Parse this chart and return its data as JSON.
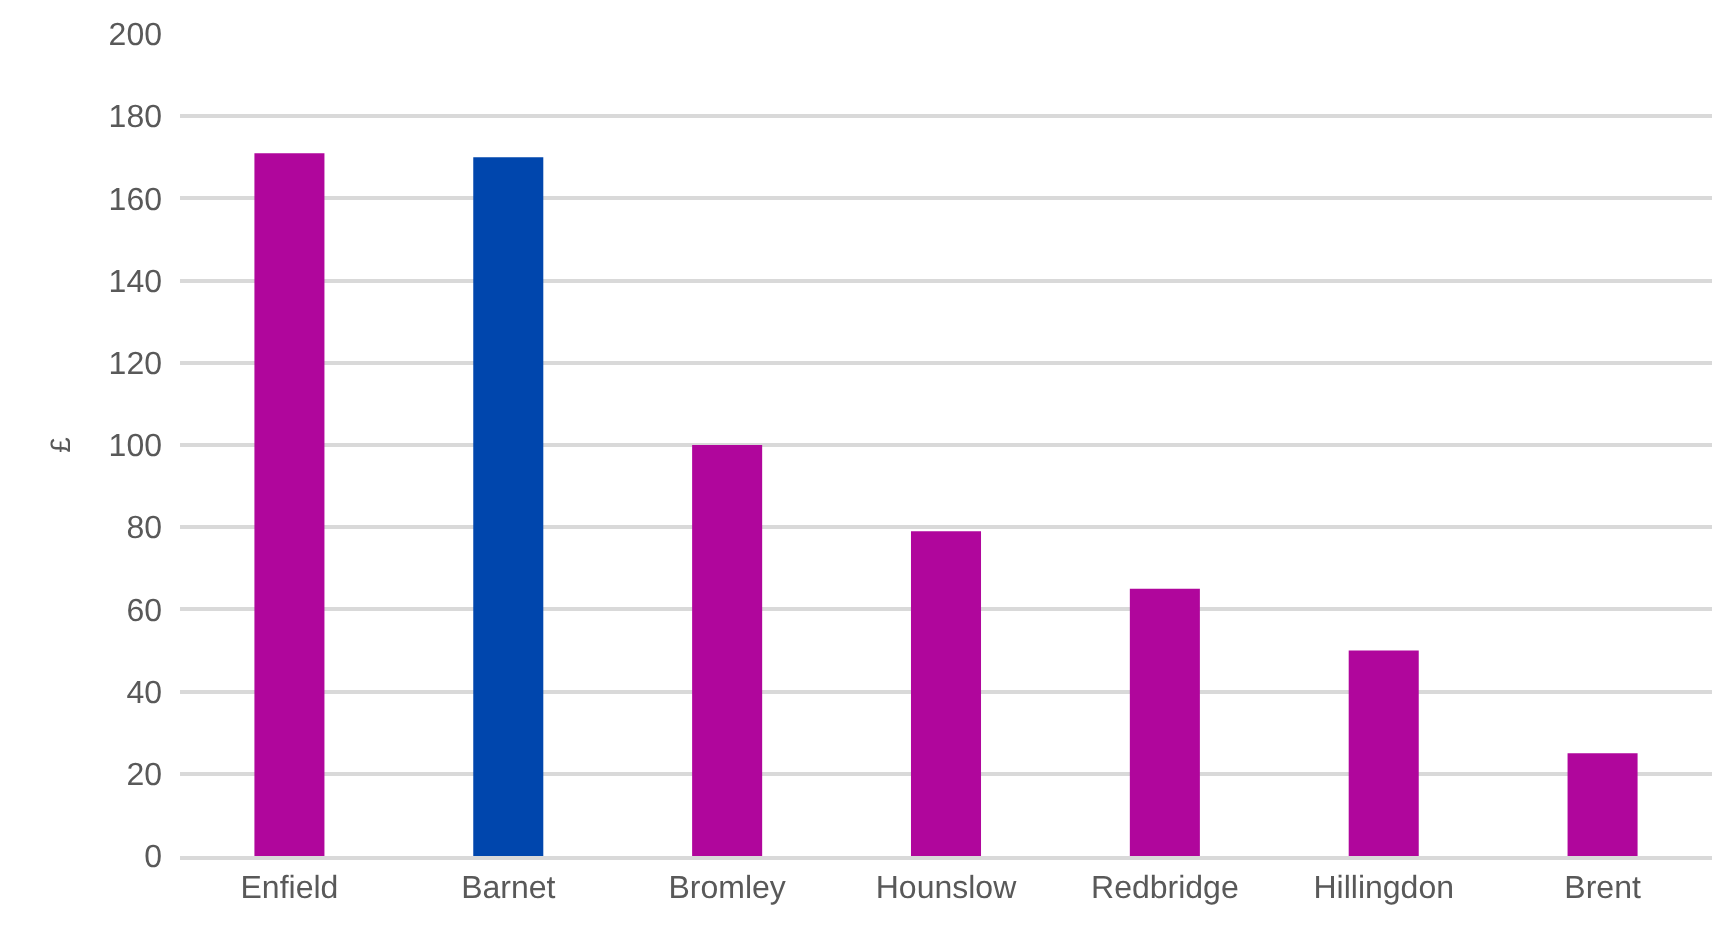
{
  "chart_data": {
    "type": "bar",
    "ylabel": "£",
    "categories": [
      "Enfield",
      "Barnet",
      "Bromley",
      "Hounslow",
      "Redbridge",
      "Hillingdon",
      "Brent"
    ],
    "values": [
      171,
      170,
      100,
      79,
      65,
      50,
      25
    ],
    "colors": [
      "#b0069c",
      "#0046ad",
      "#b0069c",
      "#b0069c",
      "#b0069c",
      "#b0069c",
      "#b0069c"
    ],
    "ylim": [
      0,
      200
    ],
    "yticks": [
      0,
      20,
      40,
      60,
      80,
      100,
      120,
      140,
      160,
      180,
      200
    ],
    "grid": "y",
    "legend": false
  }
}
